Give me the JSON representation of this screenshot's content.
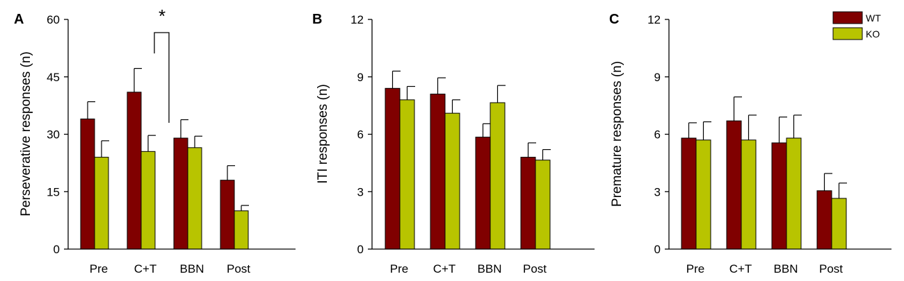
{
  "colors": {
    "WT": "#800000",
    "KO": "#b8c400",
    "axis": "#000000"
  },
  "legend": [
    {
      "name": "WT",
      "color": "#800000"
    },
    {
      "name": "KO",
      "color": "#b8c400"
    }
  ],
  "chart_data": [
    {
      "type": "bar",
      "panel": "A",
      "ylabel": "Perseverative responses (n)",
      "xlabel": "",
      "ylim": [
        0,
        60
      ],
      "yticks": [
        "0",
        "15",
        "30",
        "45",
        "60"
      ],
      "categories": [
        "Pre",
        "C+T",
        "BBN",
        "Post"
      ],
      "series": [
        {
          "name": "WT",
          "values": [
            34,
            41,
            29,
            18
          ],
          "errors": [
            4.5,
            6.2,
            4.8,
            3.8
          ]
        },
        {
          "name": "KO",
          "values": [
            24,
            25.5,
            26.5,
            10
          ],
          "errors": [
            4.3,
            4.2,
            3.0,
            1.4
          ]
        }
      ],
      "annotation": {
        "text": "*",
        "category": "C+T"
      }
    },
    {
      "type": "bar",
      "panel": "B",
      "ylabel": "ITI responses (n)",
      "xlabel": "",
      "ylim": [
        0,
        12
      ],
      "yticks": [
        "0",
        "3",
        "6",
        "9",
        "12"
      ],
      "categories": [
        "Pre",
        "C+T",
        "BBN",
        "Post"
      ],
      "series": [
        {
          "name": "WT",
          "values": [
            8.4,
            8.1,
            5.85,
            4.8
          ],
          "errors": [
            0.9,
            0.85,
            0.7,
            0.75
          ]
        },
        {
          "name": "KO",
          "values": [
            7.8,
            7.1,
            7.65,
            4.65
          ],
          "errors": [
            0.7,
            0.7,
            0.9,
            0.55
          ]
        }
      ]
    },
    {
      "type": "bar",
      "panel": "C",
      "ylabel": "Premature responses (n)",
      "xlabel": "",
      "ylim": [
        0,
        12
      ],
      "yticks": [
        "0",
        "3",
        "6",
        "9",
        "12"
      ],
      "categories": [
        "Pre",
        "C+T",
        "BBN",
        "Post"
      ],
      "series": [
        {
          "name": "WT",
          "values": [
            5.8,
            6.7,
            5.55,
            3.05
          ],
          "errors": [
            0.8,
            1.25,
            1.35,
            0.9
          ]
        },
        {
          "name": "KO",
          "values": [
            5.7,
            5.7,
            5.8,
            2.65
          ],
          "errors": [
            0.95,
            1.3,
            1.2,
            0.8
          ]
        }
      ]
    }
  ]
}
